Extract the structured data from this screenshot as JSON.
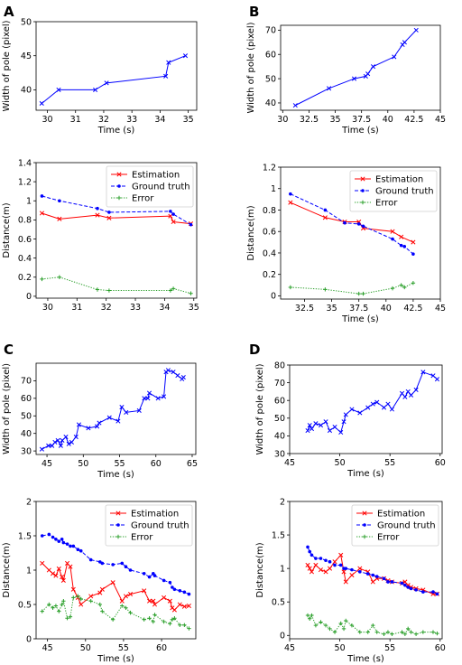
{
  "panel_letters": [
    "A",
    "B",
    "C",
    "D"
  ],
  "colors": {
    "width": "#0000ff",
    "estimation": "#ff0000",
    "ground_truth": "#0000ff",
    "error": "#2ca02c"
  },
  "chart_data": [
    {
      "id": "A-width",
      "panel": "A",
      "type": "line",
      "xlabel": "Time (s)",
      "ylabel": "Width of pole (pixel)",
      "xlim": [
        29.6,
        35.3
      ],
      "ylim": [
        37,
        50
      ],
      "xticks": [
        30,
        31,
        32,
        33,
        34,
        35
      ],
      "yticks": [
        35,
        40,
        45,
        50
      ],
      "legend": null,
      "series": [
        {
          "color": "#0000ff",
          "marker": "x",
          "style": "solid",
          "x": [
            29.8,
            30.4,
            31.7,
            32.1,
            34.2,
            34.3,
            34.9
          ],
          "y": [
            38,
            40,
            40,
            41,
            42,
            44,
            45
          ]
        }
      ]
    },
    {
      "id": "A-distance",
      "panel": "A",
      "type": "line",
      "xlabel": "",
      "ylabel": "Distance(m)",
      "xlim": [
        29.6,
        35.1
      ],
      "ylim": [
        -0.02,
        1.4
      ],
      "xticks": [
        30,
        31,
        32,
        33,
        34,
        35
      ],
      "yticks": [
        0.0,
        0.2,
        0.4,
        0.6,
        0.8,
        1.0,
        1.2,
        1.4
      ],
      "legend": "top-right",
      "series": [
        {
          "name": "Estimation",
          "color": "#ff0000",
          "marker": "x",
          "style": "solid",
          "x": [
            29.8,
            30.4,
            31.7,
            32.1,
            34.2,
            34.3,
            34.9
          ],
          "y": [
            0.87,
            0.81,
            0.85,
            0.82,
            0.84,
            0.78,
            0.76
          ]
        },
        {
          "name": "Ground truth",
          "color": "#0000ff",
          "marker": "o",
          "style": "dashed",
          "x": [
            29.8,
            30.4,
            31.7,
            32.1,
            34.2,
            34.3,
            34.9
          ],
          "y": [
            1.05,
            1.0,
            0.92,
            0.88,
            0.89,
            0.86,
            0.75
          ]
        },
        {
          "name": "Error",
          "color": "#2ca02c",
          "marker": "+",
          "style": "dotted",
          "x": [
            29.8,
            30.4,
            31.7,
            32.1,
            34.2,
            34.3,
            34.9
          ],
          "y": [
            0.18,
            0.2,
            0.07,
            0.06,
            0.06,
            0.08,
            0.03
          ]
        }
      ]
    },
    {
      "id": "B-width",
      "panel": "B",
      "type": "line",
      "xlabel": "Time (s)",
      "ylabel": "Width of pole (pixel)",
      "xlim": [
        29.8,
        45.0
      ],
      "ylim": [
        37,
        72
      ],
      "xticks": [
        30.0,
        32.5,
        35.0,
        37.5,
        40.0,
        42.5,
        45.0
      ],
      "yticks": [
        40,
        50,
        60,
        70
      ],
      "legend": null,
      "series": [
        {
          "color": "#0000ff",
          "marker": "x",
          "style": "solid",
          "x": [
            31.2,
            34.4,
            36.8,
            37.9,
            38.1,
            38.6,
            40.6,
            41.4,
            41.6,
            42.7
          ],
          "y": [
            39,
            46,
            50,
            51,
            52,
            55,
            59,
            64,
            65,
            70
          ]
        }
      ]
    },
    {
      "id": "B-distance",
      "panel": "B",
      "type": "line",
      "xlabel": "Time (s)",
      "ylabel": "Distance(m)",
      "xlim": [
        30.3,
        45.0
      ],
      "ylim": [
        -0.03,
        1.2
      ],
      "xticks": [
        32.5,
        35.0,
        37.5,
        40.0,
        42.5,
        45.0
      ],
      "yticks": [
        0.0,
        0.2,
        0.4,
        0.6,
        0.8,
        1.0,
        1.2
      ],
      "legend": "top-right",
      "series": [
        {
          "name": "Estimation",
          "color": "#ff0000",
          "marker": "x",
          "style": "solid",
          "x": [
            31.2,
            34.4,
            36.2,
            37.5,
            37.9,
            40.6,
            41.4,
            42.5
          ],
          "y": [
            0.87,
            0.73,
            0.69,
            0.69,
            0.63,
            0.6,
            0.55,
            0.5
          ]
        },
        {
          "name": "Ground truth",
          "color": "#0000ff",
          "marker": "o",
          "style": "dashed",
          "x": [
            31.2,
            34.4,
            36.2,
            37.5,
            37.9,
            40.6,
            41.4,
            41.7,
            42.5
          ],
          "y": [
            0.95,
            0.8,
            0.68,
            0.67,
            0.65,
            0.53,
            0.47,
            0.46,
            0.39
          ]
        },
        {
          "name": "Error",
          "color": "#2ca02c",
          "marker": "+",
          "style": "dotted",
          "x": [
            31.2,
            34.4,
            37.5,
            37.9,
            40.6,
            41.4,
            41.7,
            42.5
          ],
          "y": [
            0.08,
            0.06,
            0.02,
            0.02,
            0.07,
            0.1,
            0.08,
            0.12
          ]
        }
      ]
    },
    {
      "id": "C-width",
      "panel": "C",
      "type": "line",
      "xlabel": "Time (s)",
      "ylabel": "Width of pole (pixel)",
      "xlim": [
        43.5,
        65.5
      ],
      "ylim": [
        28,
        80
      ],
      "xticks": [
        45,
        50,
        55,
        60,
        65
      ],
      "yticks": [
        30,
        40,
        50,
        60,
        70
      ],
      "legend": null,
      "series": [
        {
          "color": "#0000ff",
          "marker": "x",
          "style": "solid",
          "x": [
            44.3,
            45.2,
            45.7,
            46.1,
            46.5,
            46.9,
            47.1,
            47.6,
            48.0,
            48.4,
            49.0,
            49.4,
            50.7,
            51.9,
            52.2,
            53.6,
            54.8,
            55.3,
            55.9,
            57.7,
            58.4,
            58.9,
            59.1,
            60.3,
            61.1,
            61.4,
            61.7,
            62.4,
            63.0,
            63.6,
            63.8
          ],
          "y": [
            31,
            33,
            33,
            35,
            36,
            33,
            36,
            38,
            34,
            35,
            38,
            45,
            43,
            44,
            46,
            49,
            47,
            55,
            52,
            53,
            60,
            60,
            63,
            60,
            61,
            75,
            76,
            75,
            73,
            71,
            72
          ]
        }
      ]
    },
    {
      "id": "C-distance",
      "panel": "C",
      "type": "line",
      "xlabel": "Time (s)",
      "ylabel": "Distance(m)",
      "xlim": [
        43.5,
        64.5
      ],
      "ylim": [
        0.0,
        2.0
      ],
      "xticks": [
        45,
        50,
        55,
        60
      ],
      "yticks": [
        0.0,
        0.5,
        1.0,
        1.5,
        2.0
      ],
      "legend": "top-right",
      "series": [
        {
          "name": "Estimation",
          "color": "#ff0000",
          "marker": "x",
          "style": "solid",
          "x": [
            44.3,
            45.2,
            45.7,
            46.1,
            46.5,
            46.9,
            47.1,
            47.6,
            48.0,
            48.4,
            49.0,
            49.4,
            50.7,
            51.9,
            52.2,
            53.6,
            54.8,
            55.3,
            55.9,
            57.7,
            58.4,
            58.9,
            59.1,
            60.3,
            61.1,
            61.4,
            61.7,
            62.4,
            63.0,
            63.6
          ],
          "y": [
            1.1,
            1.0,
            0.95,
            0.92,
            1.02,
            0.9,
            0.85,
            1.1,
            1.05,
            0.72,
            0.6,
            0.5,
            0.62,
            0.67,
            0.72,
            0.82,
            0.55,
            0.62,
            0.65,
            0.7,
            0.55,
            0.55,
            0.5,
            0.6,
            0.55,
            0.45,
            0.42,
            0.5,
            0.47,
            0.48
          ]
        },
        {
          "name": "Ground truth",
          "color": "#0000ff",
          "marker": "o",
          "style": "dashed",
          "x": [
            44.3,
            45.2,
            45.7,
            46.1,
            46.5,
            46.9,
            47.1,
            47.6,
            48.0,
            48.4,
            49.0,
            49.4,
            50.7,
            51.9,
            52.2,
            53.6,
            54.8,
            55.3,
            55.9,
            57.7,
            58.4,
            58.9,
            59.1,
            60.3,
            61.1,
            61.4,
            61.7,
            62.4,
            63.0,
            63.6
          ],
          "y": [
            1.5,
            1.52,
            1.48,
            1.45,
            1.42,
            1.45,
            1.4,
            1.38,
            1.35,
            1.35,
            1.3,
            1.28,
            1.15,
            1.12,
            1.1,
            1.08,
            1.1,
            1.05,
            1.0,
            0.95,
            0.9,
            0.95,
            0.92,
            0.85,
            0.82,
            0.75,
            0.72,
            0.7,
            0.68,
            0.65
          ]
        },
        {
          "name": "Error",
          "color": "#2ca02c",
          "marker": "+",
          "style": "dotted",
          "x": [
            44.3,
            45.2,
            45.7,
            46.1,
            46.5,
            46.9,
            47.1,
            47.6,
            48.0,
            48.4,
            49.0,
            49.4,
            50.7,
            51.9,
            52.2,
            53.6,
            54.8,
            55.3,
            55.9,
            57.7,
            58.4,
            58.9,
            59.1,
            60.3,
            61.1,
            61.4,
            61.7,
            62.4,
            63.0,
            63.6
          ],
          "y": [
            0.4,
            0.5,
            0.45,
            0.48,
            0.4,
            0.5,
            0.55,
            0.3,
            0.32,
            0.6,
            0.62,
            0.58,
            0.55,
            0.5,
            0.4,
            0.28,
            0.48,
            0.45,
            0.38,
            0.28,
            0.3,
            0.25,
            0.35,
            0.25,
            0.22,
            0.28,
            0.3,
            0.2,
            0.2,
            0.15
          ]
        }
      ]
    },
    {
      "id": "D-width",
      "panel": "D",
      "type": "line",
      "xlabel": "Time (s)",
      "ylabel": "Width of pole (pixel)",
      "xlim": [
        45.0,
        60.2
      ],
      "ylim": [
        30,
        80
      ],
      "xticks": [
        45,
        50,
        55,
        60
      ],
      "yticks": [
        30,
        40,
        50,
        60,
        70,
        80
      ],
      "legend": null,
      "series": [
        {
          "color": "#0000ff",
          "marker": "x",
          "style": "solid",
          "x": [
            46.8,
            47.0,
            47.2,
            47.6,
            48.1,
            48.6,
            49.0,
            49.5,
            50.1,
            50.4,
            50.6,
            51.2,
            52.0,
            52.8,
            53.3,
            53.7,
            54.4,
            54.8,
            55.2,
            56.2,
            56.5,
            56.8,
            57.1,
            57.6,
            58.3,
            59.3,
            59.7
          ],
          "y": [
            43,
            46,
            44,
            47,
            46,
            48,
            43,
            45,
            42,
            48,
            52,
            55,
            53,
            56,
            58,
            59,
            56,
            58,
            55,
            64,
            62,
            65,
            63,
            66,
            76,
            74,
            72
          ]
        }
      ]
    },
    {
      "id": "D-distance",
      "panel": "D",
      "type": "line",
      "xlabel": "Time (s)",
      "ylabel": "Distance(m)",
      "xlim": [
        45.0,
        60.2
      ],
      "ylim": [
        -0.05,
        2.0
      ],
      "xticks": [
        45,
        50,
        55,
        60
      ],
      "yticks": [
        0.0,
        0.5,
        1.0,
        1.5,
        2.0
      ],
      "legend": "top-right",
      "series": [
        {
          "name": "Estimation",
          "color": "#ff0000",
          "marker": "x",
          "style": "solid",
          "x": [
            46.8,
            47.0,
            47.2,
            47.6,
            48.1,
            48.6,
            49.0,
            49.5,
            50.1,
            50.4,
            50.6,
            51.2,
            52.0,
            52.8,
            53.3,
            53.7,
            54.4,
            54.8,
            55.2,
            56.2,
            56.5,
            56.8,
            57.1,
            57.6,
            58.3,
            59.3,
            59.7
          ],
          "y": [
            1.05,
            1.0,
            0.95,
            1.05,
            0.98,
            0.95,
            1.0,
            1.1,
            1.2,
            0.95,
            0.8,
            0.9,
            1.0,
            0.95,
            0.8,
            0.85,
            0.85,
            0.82,
            0.8,
            0.78,
            0.8,
            0.75,
            0.72,
            0.7,
            0.68,
            0.62,
            0.62
          ]
        },
        {
          "name": "Ground truth",
          "color": "#0000ff",
          "marker": "o",
          "style": "dashed",
          "x": [
            46.8,
            47.0,
            47.2,
            47.6,
            48.1,
            48.6,
            49.0,
            49.5,
            50.1,
            50.4,
            50.6,
            51.2,
            52.0,
            52.8,
            53.3,
            53.7,
            54.4,
            54.8,
            55.2,
            56.2,
            56.5,
            56.8,
            57.1,
            57.6,
            58.3,
            59.3,
            59.7
          ],
          "y": [
            1.32,
            1.25,
            1.2,
            1.15,
            1.15,
            1.12,
            1.1,
            1.05,
            1.05,
            1.0,
            1.0,
            0.98,
            0.95,
            0.92,
            0.9,
            0.88,
            0.85,
            0.8,
            0.8,
            0.78,
            0.75,
            0.72,
            0.7,
            0.68,
            0.65,
            0.65,
            0.62
          ]
        },
        {
          "name": "Error",
          "color": "#2ca02c",
          "marker": "+",
          "style": "dotted",
          "x": [
            46.8,
            47.0,
            47.2,
            47.6,
            48.1,
            48.6,
            49.0,
            49.5,
            50.1,
            50.4,
            50.6,
            51.2,
            52.0,
            52.8,
            53.3,
            53.7,
            54.4,
            54.8,
            55.2,
            56.2,
            56.5,
            56.8,
            57.1,
            57.6,
            58.3,
            59.3,
            59.7
          ],
          "y": [
            0.3,
            0.25,
            0.3,
            0.15,
            0.2,
            0.15,
            0.1,
            0.05,
            0.18,
            0.1,
            0.22,
            0.15,
            0.05,
            0.05,
            0.15,
            0.05,
            0.02,
            0.05,
            0.02,
            0.05,
            0.02,
            0.1,
            0.05,
            0.02,
            0.05,
            0.05,
            0.03
          ]
        }
      ]
    }
  ]
}
